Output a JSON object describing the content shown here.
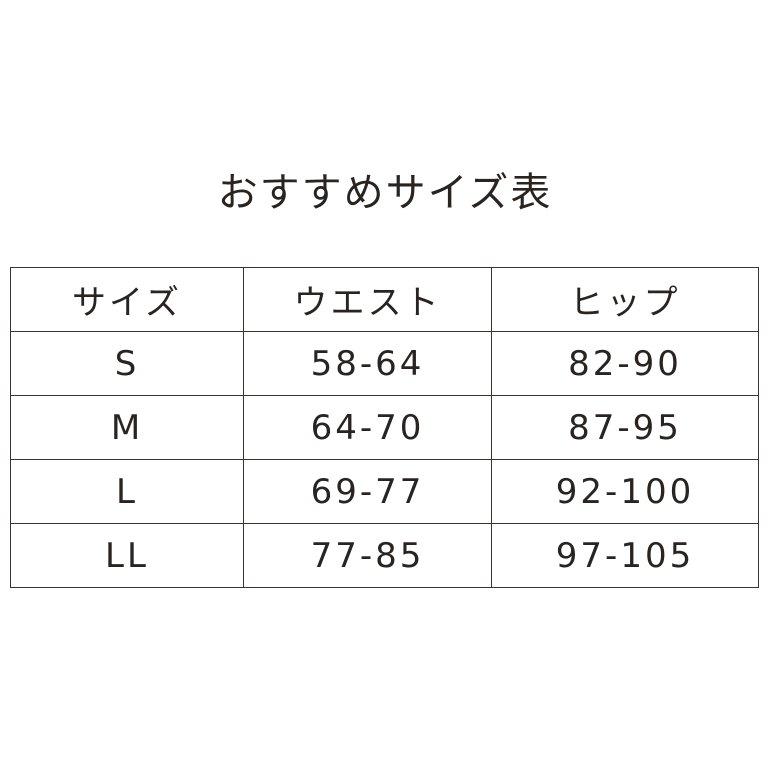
{
  "title": "おすすめサイズ表",
  "headers": [
    "サイズ",
    "ウエスト",
    "ヒップ"
  ],
  "rows": [
    [
      "S",
      "58-64",
      "82-90"
    ],
    [
      "M",
      "64-70",
      "87-95"
    ],
    [
      "L",
      "69-77",
      "92-100"
    ],
    [
      "LL",
      "77-85",
      "97-105"
    ]
  ]
}
